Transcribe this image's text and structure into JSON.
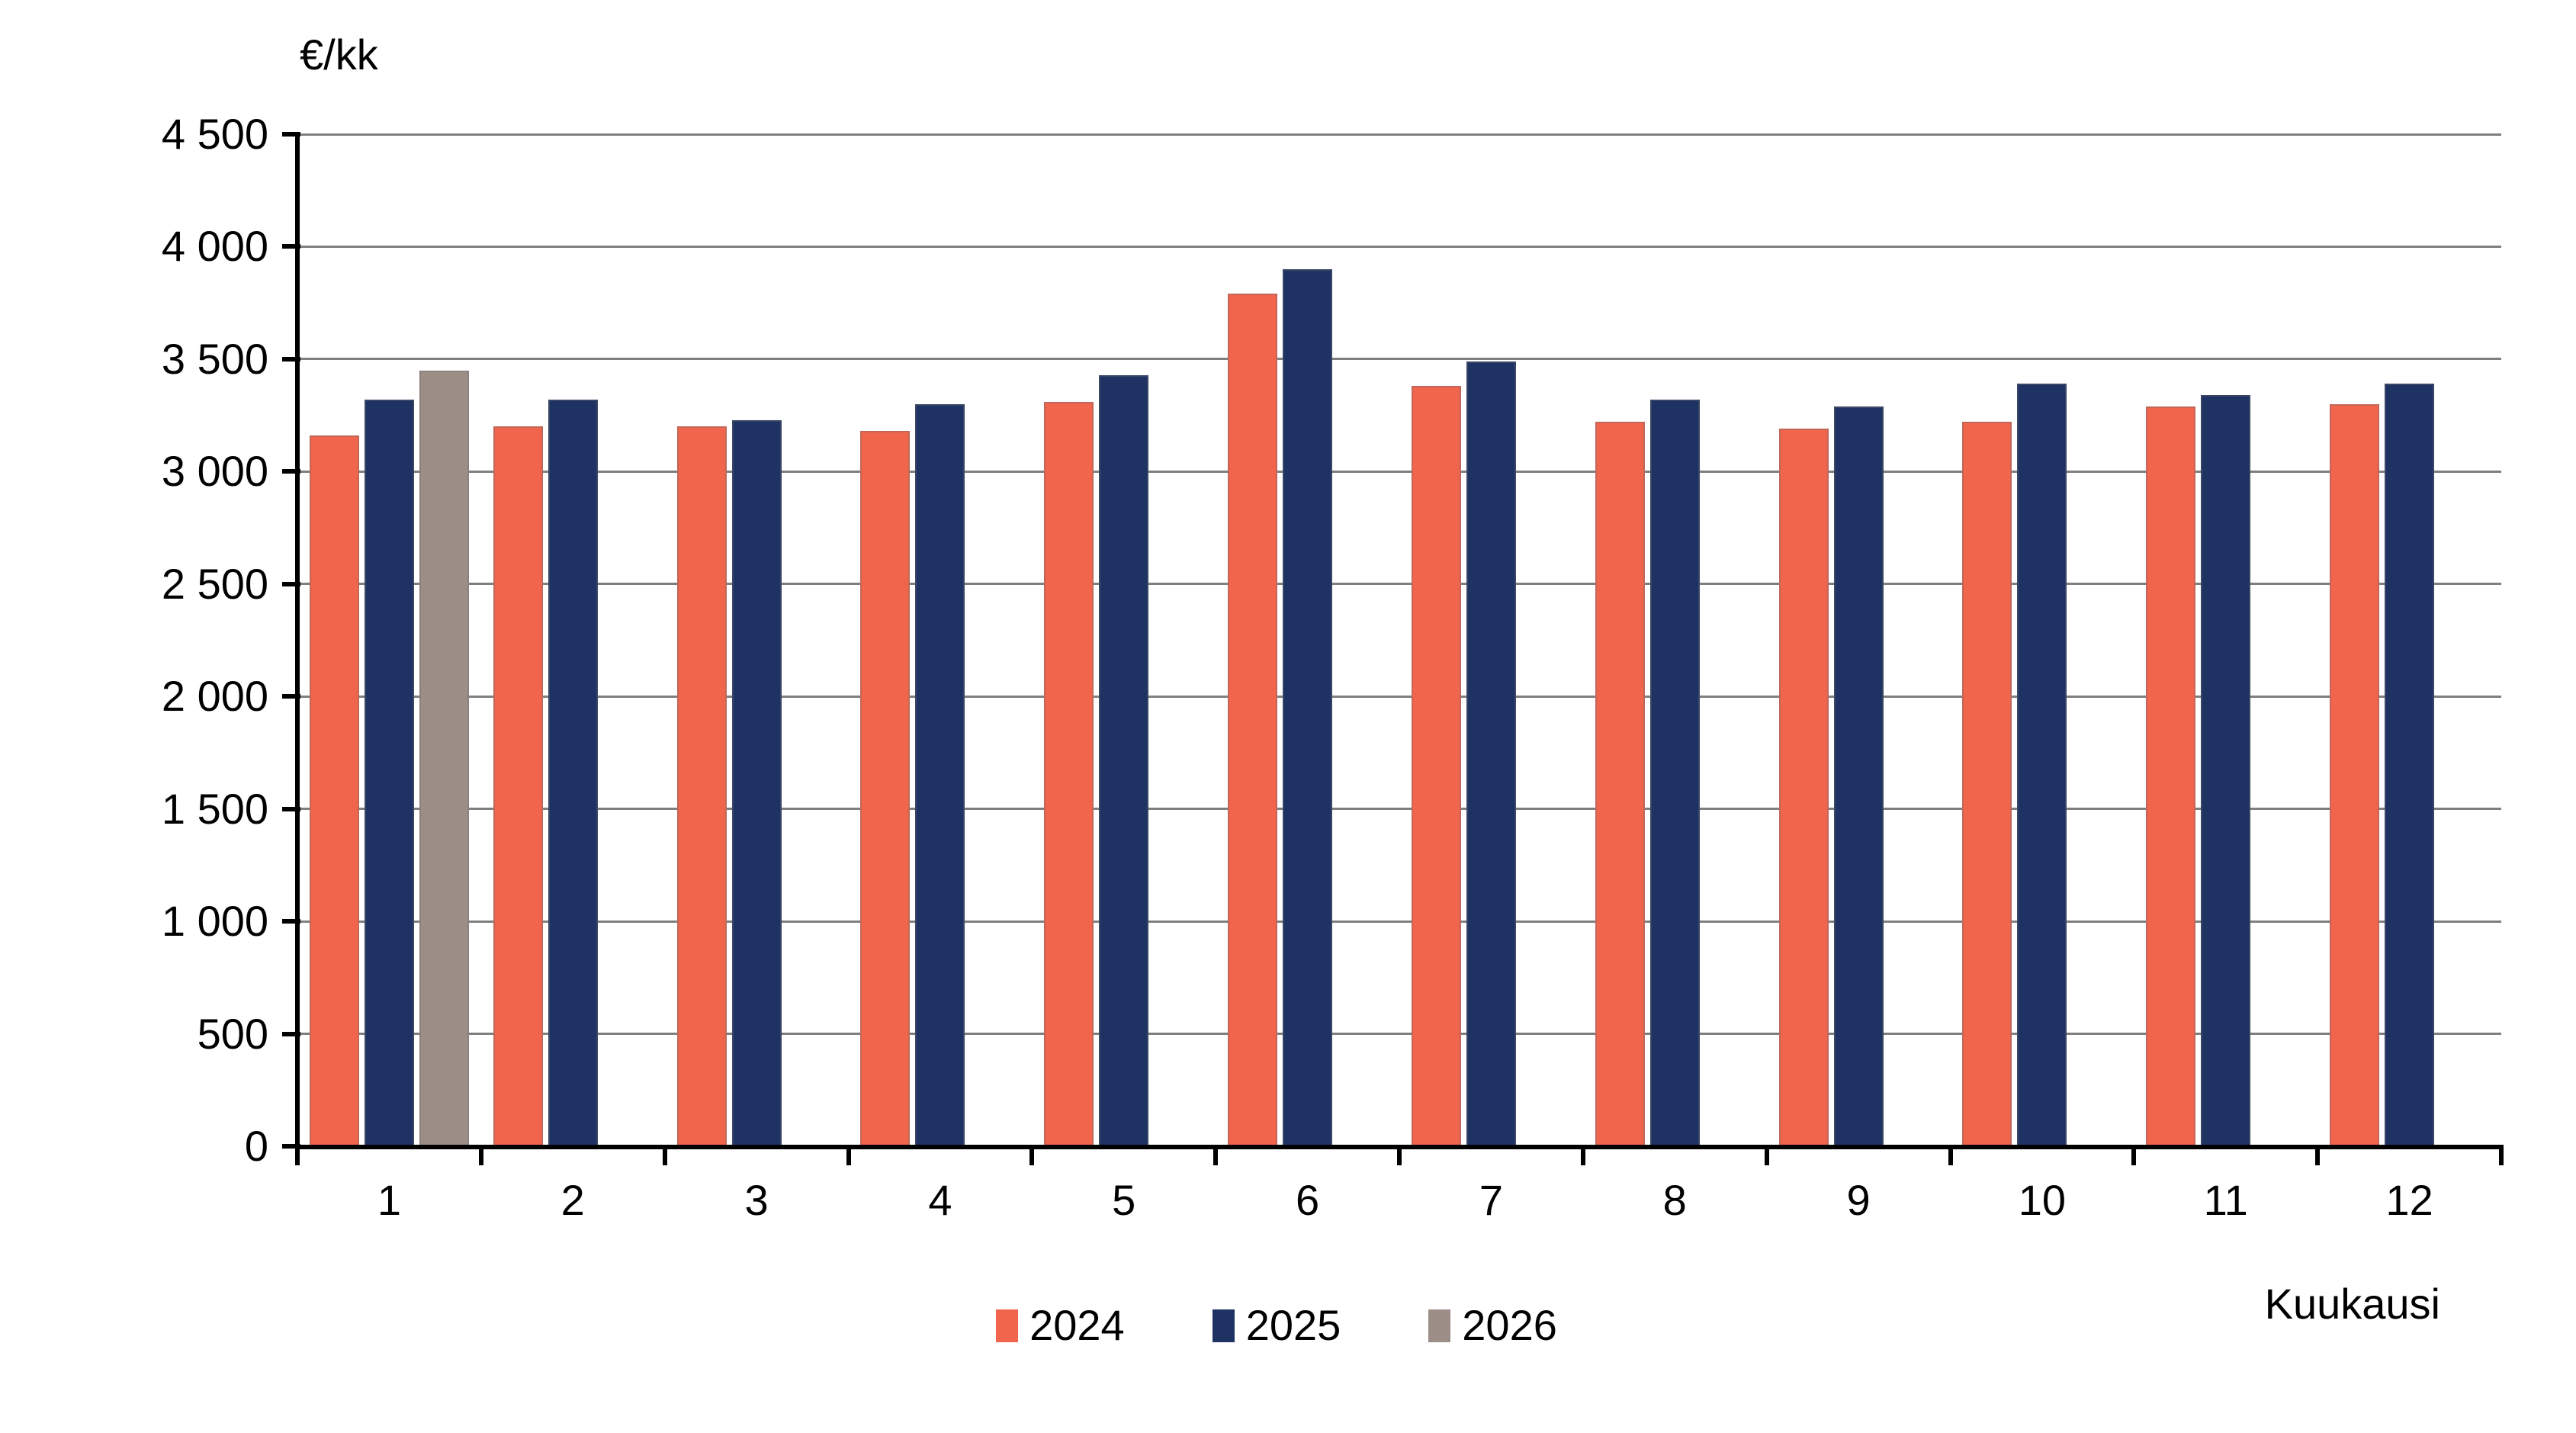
{
  "chart_data": {
    "type": "bar",
    "title": "",
    "y_axis_title": "€/kk",
    "x_axis_title": "Kuukausi",
    "categories": [
      "1",
      "2",
      "3",
      "4",
      "5",
      "6",
      "7",
      "8",
      "9",
      "10",
      "11",
      "12"
    ],
    "series": [
      {
        "name": "2024",
        "color": "#F0654C",
        "values": [
          3160,
          3200,
          3200,
          3180,
          3310,
          3790,
          3380,
          3220,
          3190,
          3220,
          3290,
          3300
        ]
      },
      {
        "name": "2025",
        "color": "#1E3263",
        "values": [
          3320,
          3320,
          3230,
          3300,
          3430,
          3900,
          3490,
          3320,
          3290,
          3390,
          3340,
          3390
        ]
      },
      {
        "name": "2026",
        "color": "#9C8E86",
        "values": [
          3450,
          null,
          null,
          null,
          null,
          null,
          null,
          null,
          null,
          null,
          null,
          null
        ]
      }
    ],
    "ylim": [
      0,
      4500
    ],
    "ytick_step": 500,
    "ytick_labels": [
      "0",
      "500",
      "1 000",
      "1 500",
      "2 000",
      "2 500",
      "3 000",
      "3 500",
      "4 000",
      "4 500"
    ],
    "grid": true,
    "gridline_color": "#7F7F7F",
    "axis_color": "#000000",
    "background_color": "#FFFFFF",
    "legend_position": "bottom",
    "legend_items": [
      "2024",
      "2025",
      "2026"
    ]
  }
}
